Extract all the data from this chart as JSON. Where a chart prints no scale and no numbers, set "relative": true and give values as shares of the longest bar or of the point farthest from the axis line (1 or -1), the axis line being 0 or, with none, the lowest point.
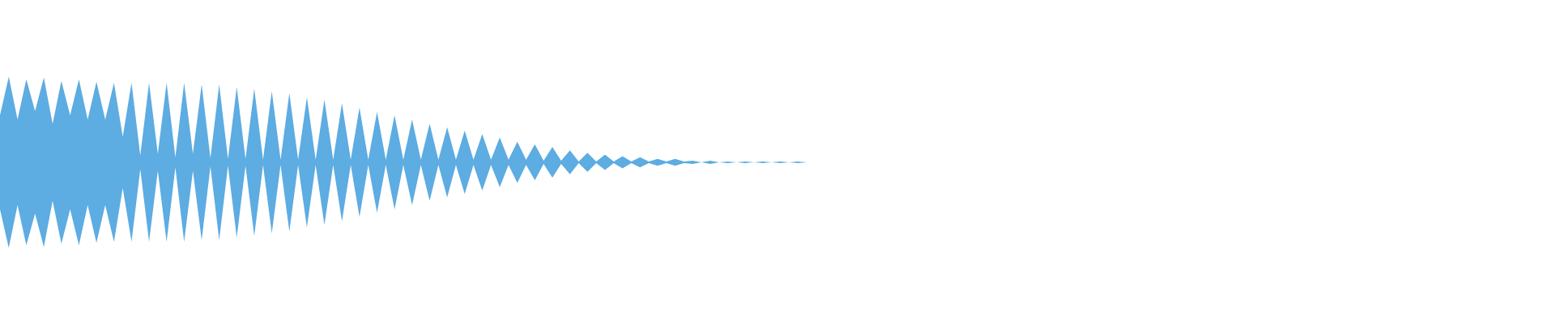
{
  "chart_data": {
    "type": "area",
    "relative": true,
    "categories": [
      null,
      null,
      null,
      null,
      null,
      null,
      null,
      null,
      null,
      null,
      null,
      null,
      null,
      null,
      null,
      null,
      null,
      null,
      null,
      null,
      null,
      null,
      null,
      null,
      null,
      null,
      null,
      null,
      null,
      null,
      null,
      null,
      null,
      null,
      null,
      null,
      null,
      null,
      null,
      null,
      null,
      null,
      null,
      null,
      null,
      null,
      null,
      null,
      null,
      null,
      null,
      null,
      null,
      null,
      null,
      null,
      null,
      null,
      null,
      null,
      null,
      null,
      null,
      null,
      null,
      null,
      null,
      null,
      null,
      null,
      null,
      null,
      null,
      null,
      null,
      null,
      null,
      null,
      null,
      null,
      null,
      null,
      null,
      null,
      null,
      null,
      null,
      null,
      null,
      null,
      null,
      null,
      null
    ],
    "series": [
      {
        "color": "#5dace2",
        "values": [
          0.55,
          1.0,
          0.5,
          0.97,
          0.6,
          0.99,
          0.45,
          0.95,
          0.55,
          0.97,
          0.5,
          0.94,
          0.5,
          0.93,
          0.3,
          0.93,
          0.08,
          0.93,
          0.1,
          0.93,
          0.06,
          0.93,
          0.1,
          0.91,
          0.05,
          0.91,
          0.04,
          0.88,
          0.04,
          0.86,
          0.03,
          0.83,
          0.03,
          0.81,
          0.03,
          0.76,
          0.03,
          0.73,
          0.03,
          0.69,
          0.03,
          0.64,
          0.03,
          0.59,
          0.03,
          0.55,
          0.03,
          0.5,
          0.03,
          0.45,
          0.03,
          0.41,
          0.03,
          0.37,
          0.03,
          0.33,
          0.03,
          0.29,
          0.03,
          0.24,
          0.03,
          0.21,
          0.02,
          0.18,
          0.02,
          0.14,
          0.01,
          0.11,
          0.01,
          0.09,
          0.01,
          0.07,
          0.01,
          0.06,
          0.01,
          0.04,
          0.01,
          0.04,
          0.01,
          0.02,
          0,
          0.02,
          0,
          0.01,
          0,
          0.01,
          0,
          0.01,
          0,
          0.01,
          0,
          0.01,
          0
        ]
      }
    ]
  }
}
